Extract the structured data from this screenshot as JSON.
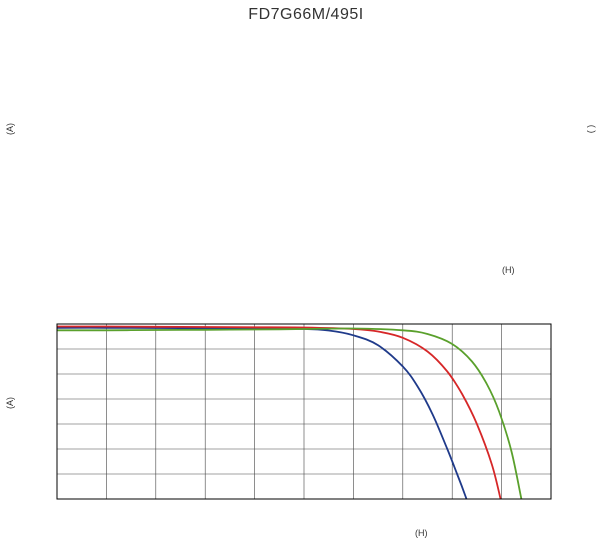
{
  "page": {
    "title": "FD7G66M/495I"
  },
  "upper_chart": {
    "ylabel_left": "(A)",
    "ylabel_right": "( )",
    "xlabel": "(H)"
  },
  "chart_data": {
    "type": "line",
    "title": "",
    "xlabel": "(H)",
    "ylabel": "(A)",
    "xlim": [
      0,
      10
    ],
    "ylim": [
      0,
      7
    ],
    "grid": true,
    "legend": "none",
    "series": [
      {
        "color": "#1f3a8a",
        "x": [
          0,
          1,
          2,
          3,
          4,
          5,
          5.5,
          6,
          6.5,
          7,
          7.3,
          7.6,
          7.9,
          8.1,
          8.29
        ],
        "y": [
          6.85,
          6.85,
          6.84,
          6.83,
          6.82,
          6.8,
          6.74,
          6.55,
          6.15,
          5.3,
          4.5,
          3.4,
          2.0,
          1.0,
          0
        ]
      },
      {
        "color": "#d62728",
        "x": [
          0,
          1,
          2,
          3,
          4,
          5,
          6,
          6.5,
          7,
          7.5,
          7.9,
          8.2,
          8.5,
          8.8,
          8.98
        ],
        "y": [
          6.9,
          6.9,
          6.89,
          6.88,
          6.87,
          6.86,
          6.8,
          6.7,
          6.45,
          5.9,
          5.1,
          4.2,
          3.0,
          1.4,
          0
        ]
      },
      {
        "color": "#5aa02c",
        "x": [
          0,
          1,
          2,
          3,
          4,
          5,
          6,
          7,
          7.5,
          8,
          8.4,
          8.7,
          8.95,
          9.2,
          9.4
        ],
        "y": [
          6.75,
          6.75,
          6.76,
          6.77,
          6.78,
          6.8,
          6.82,
          6.75,
          6.6,
          6.2,
          5.5,
          4.6,
          3.5,
          1.9,
          0
        ]
      }
    ]
  }
}
